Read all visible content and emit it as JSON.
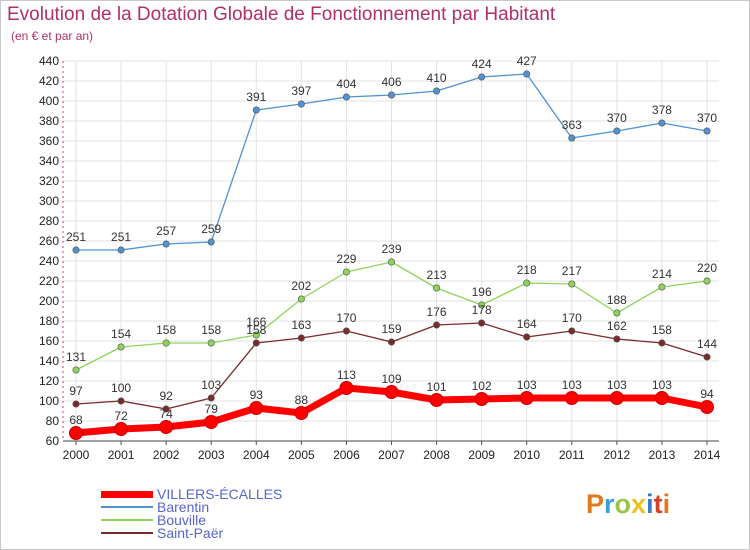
{
  "header": {
    "title": "Evolution de la Dotation Globale de Fonctionnement par Habitant",
    "subtitle": "(en € et par an)"
  },
  "logo": {
    "text": "Proxiti",
    "colors": [
      "#e07a1e",
      "#3aa0d8",
      "#9bc34a",
      "#e8c31e",
      "#3a7cc8",
      "#d8402a",
      "#e07a1e"
    ]
  },
  "chart_data": {
    "type": "line",
    "x": [
      "2000",
      "2001",
      "2002",
      "2003",
      "2004",
      "2005",
      "2006",
      "2007",
      "2008",
      "2009",
      "2010",
      "2011",
      "2012",
      "2013",
      "2014"
    ],
    "ylim": [
      60,
      440
    ],
    "yticks": [
      60,
      80,
      100,
      120,
      140,
      160,
      180,
      200,
      220,
      240,
      260,
      280,
      300,
      320,
      340,
      360,
      380,
      400,
      420,
      440
    ],
    "grid": true,
    "legend_position": "bottom-left",
    "series": [
      {
        "name": "VILLERS-ÉCALLES",
        "color": "#ff0000",
        "values": [
          68,
          72,
          74,
          79,
          93,
          88,
          113,
          109,
          101,
          102,
          103,
          103,
          103,
          103,
          94
        ]
      },
      {
        "name": "Barentin",
        "color": "#4f93d2",
        "values": [
          251,
          251,
          257,
          259,
          391,
          397,
          404,
          406,
          410,
          424,
          427,
          363,
          370,
          378,
          370
        ]
      },
      {
        "name": "Bouville",
        "color": "#8ed45a",
        "values": [
          131,
          154,
          158,
          158,
          166,
          202,
          229,
          239,
          213,
          196,
          218,
          217,
          188,
          214,
          220
        ]
      },
      {
        "name": "Saint-Paër",
        "color": "#7a2a2a",
        "values": [
          97,
          100,
          92,
          103,
          158,
          163,
          170,
          159,
          176,
          178,
          164,
          170,
          162,
          158,
          144
        ]
      }
    ]
  }
}
